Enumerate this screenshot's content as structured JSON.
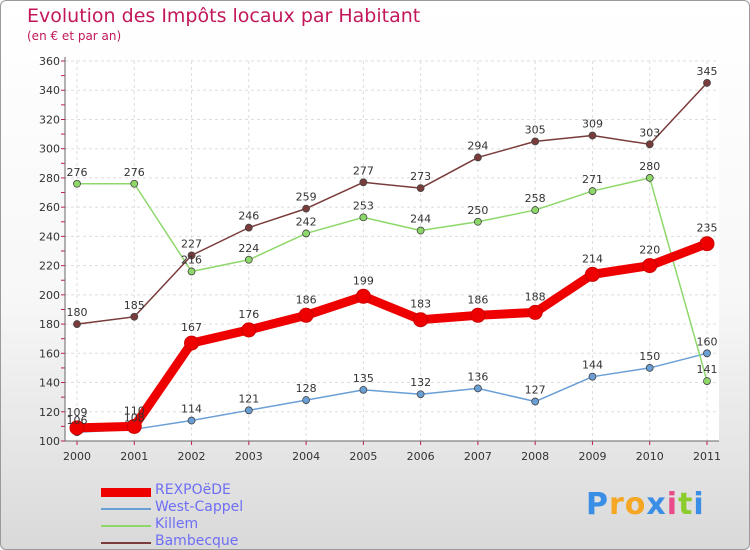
{
  "chart_data": {
    "type": "line",
    "title": "Evolution des Impôts locaux par Habitant",
    "subtitle": "(en € et par an)",
    "xlabel": "",
    "ylabel": "",
    "x": [
      "2000",
      "2001",
      "2002",
      "2003",
      "2004",
      "2005",
      "2006",
      "2007",
      "2008",
      "2009",
      "2010",
      "2011"
    ],
    "ylim": [
      100,
      360
    ],
    "yticks": [
      "100",
      "120",
      "140",
      "160",
      "180",
      "200",
      "220",
      "240",
      "260",
      "280",
      "300",
      "320",
      "340",
      "360"
    ],
    "legend_position": "bottom-left",
    "series": [
      {
        "name": "REXPOëDE",
        "color": "#ee0000",
        "emphasis": true,
        "values": [
          109,
          110,
          167,
          176,
          186,
          199,
          183,
          186,
          188,
          214,
          220,
          235
        ],
        "labels": [
          "109",
          "110",
          "167",
          "176",
          "186",
          "199",
          "183",
          "186",
          "188",
          "214",
          "220",
          "235"
        ]
      },
      {
        "name": "West-Cappel",
        "color": "#6a9fd6",
        "emphasis": false,
        "values": [
          106,
          108,
          114,
          121,
          128,
          135,
          132,
          136,
          127,
          144,
          150,
          160
        ],
        "labels": [
          "106",
          "108",
          "114",
          "121",
          "128",
          "135",
          "132",
          "136",
          "127",
          "144",
          "150",
          "160"
        ]
      },
      {
        "name": "Killem",
        "color": "#8ed86a",
        "emphasis": false,
        "values": [
          276,
          276,
          216,
          224,
          242,
          253,
          244,
          250,
          258,
          271,
          280,
          141
        ],
        "labels": [
          "276",
          "276",
          "216",
          "224",
          "242",
          "253",
          "244",
          "250",
          "258",
          "271",
          "280",
          "141"
        ]
      },
      {
        "name": "Bambecque",
        "color": "#7a3b3b",
        "emphasis": false,
        "values": [
          180,
          185,
          227,
          246,
          259,
          277,
          273,
          294,
          305,
          309,
          303,
          345
        ],
        "labels": [
          "180",
          "185",
          "227",
          "246",
          "259",
          "277",
          "273",
          "294",
          "305",
          "309",
          "303",
          "345"
        ]
      }
    ]
  },
  "logo": {
    "letters": [
      "P",
      "r",
      "o",
      "x",
      "i",
      "t",
      "i"
    ],
    "colors": [
      "#3a8ee6",
      "#f5a623",
      "#f5a623",
      "#3a8ee6",
      "#e94b8a",
      "#8ccc2c",
      "#3a8ee6"
    ]
  }
}
